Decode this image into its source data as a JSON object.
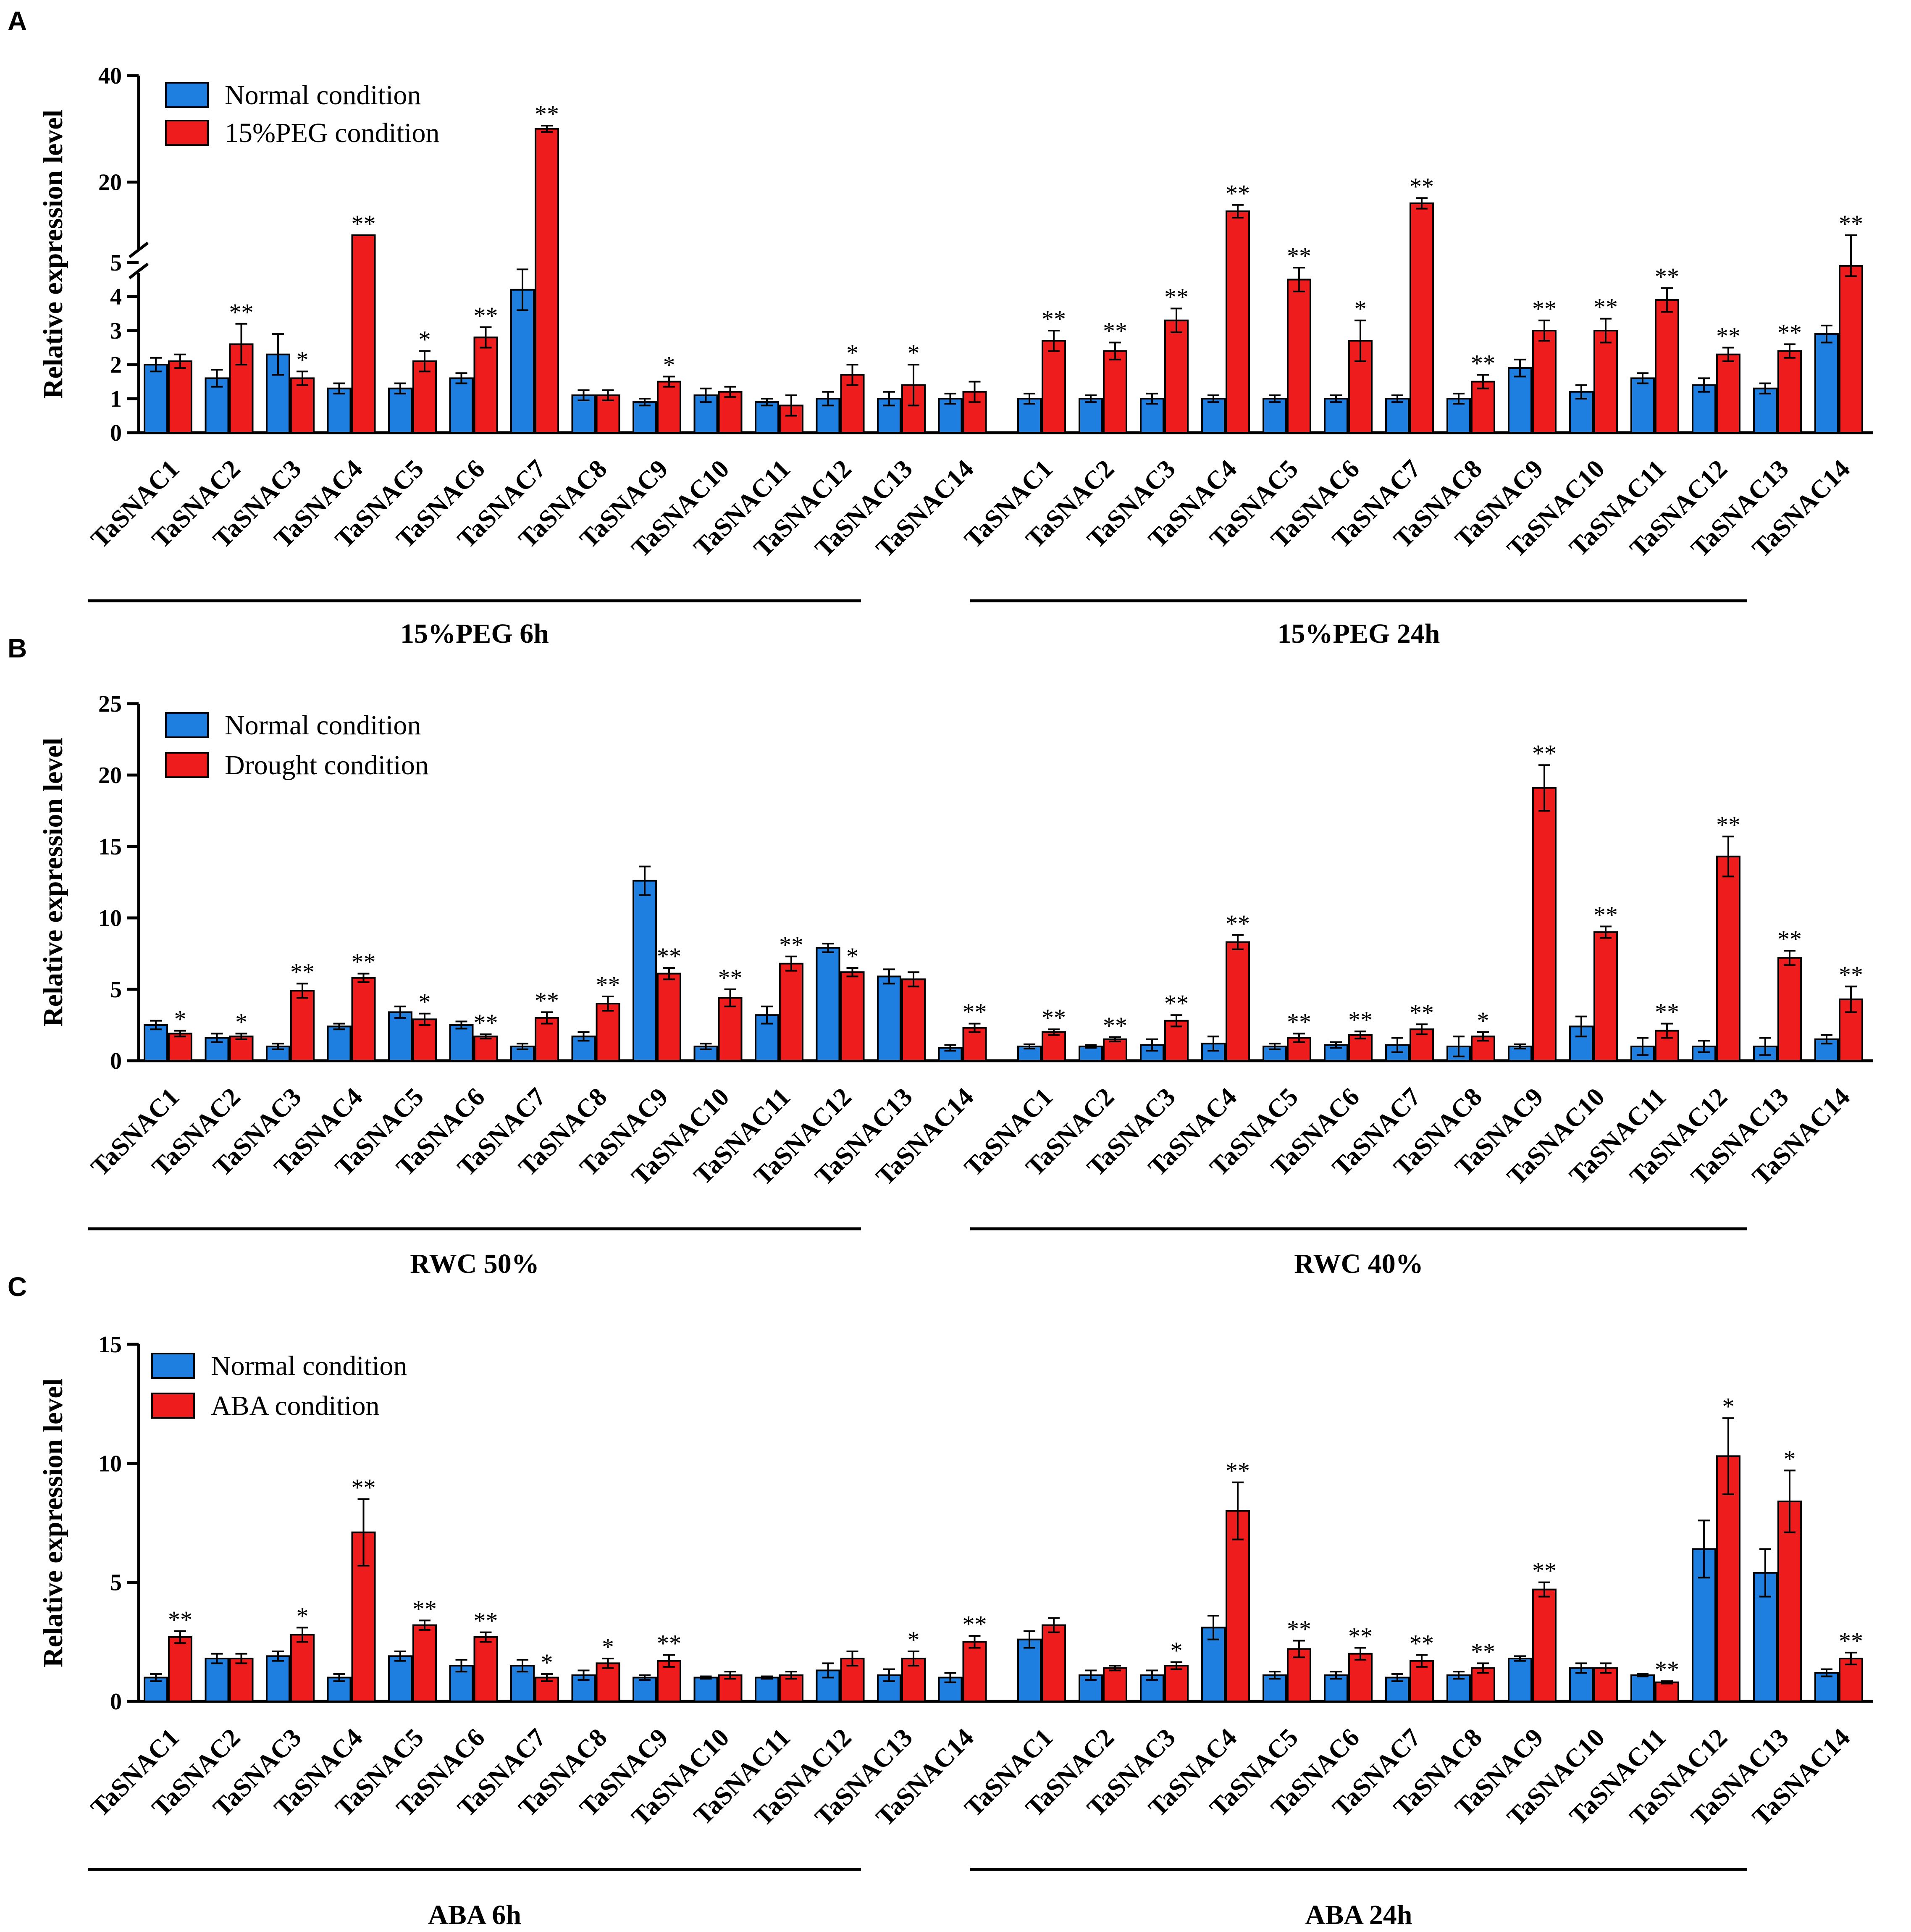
{
  "chart_data": [
    {
      "panel": "A",
      "type": "bar",
      "ylabel": "Relative expression level",
      "axis_break": true,
      "y_ticks": [
        0,
        1,
        2,
        3,
        4,
        5,
        20,
        40
      ],
      "legend": [
        {
          "name": "Normal condition",
          "color": "#1f7fe0"
        },
        {
          "name": "15%PEG condition",
          "color": "#ee1c1c"
        }
      ],
      "groups": [
        {
          "label": "15%PEG 6h",
          "categories": [
            "TaSNAC1",
            "TaSNAC2",
            "TaSNAC3",
            "TaSNAC4",
            "TaSNAC5",
            "TaSNAC6",
            "TaSNAC7",
            "TaSNAC8",
            "TaSNAC9",
            "TaSNAC10",
            "TaSNAC11",
            "TaSNAC12",
            "TaSNAC13",
            "TaSNAC14"
          ],
          "series": [
            {
              "name": "Normal condition",
              "values": [
                2.0,
                1.6,
                2.3,
                1.3,
                1.3,
                1.6,
                4.2,
                1.1,
                0.9,
                1.1,
                0.9,
                1.0,
                1.0,
                1.0
              ],
              "errors": [
                0.2,
                0.25,
                0.6,
                0.15,
                0.15,
                0.15,
                0.6,
                0.15,
                0.1,
                0.2,
                0.1,
                0.2,
                0.2,
                0.15
              ]
            },
            {
              "name": "15%PEG condition",
              "values": [
                2.1,
                2.6,
                1.6,
                8.0,
                2.1,
                2.8,
                30.0,
                1.1,
                1.5,
                1.2,
                0.8,
                1.7,
                1.4,
                1.2
              ],
              "errors": [
                0.2,
                0.6,
                0.2,
                0.4,
                0.3,
                0.3,
                0.6,
                0.15,
                0.15,
                0.15,
                0.3,
                0.3,
                0.6,
                0.3
              ]
            }
          ],
          "significance": [
            "",
            "**",
            "*",
            "**",
            "*",
            "**",
            "**",
            "",
            "*",
            "",
            "",
            "*",
            "*",
            ""
          ]
        },
        {
          "label": "15%PEG 24h",
          "categories": [
            "TaSNAC1",
            "TaSNAC2",
            "TaSNAC3",
            "TaSNAC4",
            "TaSNAC5",
            "TaSNAC6",
            "TaSNAC7",
            "TaSNAC8",
            "TaSNAC9",
            "TaSNAC10",
            "TaSNAC11",
            "TaSNAC12",
            "TaSNAC13",
            "TaSNAC14"
          ],
          "series": [
            {
              "name": "Normal condition",
              "values": [
                1.0,
                1.0,
                1.0,
                1.0,
                1.0,
                1.0,
                1.0,
                1.0,
                1.9,
                1.2,
                1.6,
                1.4,
                1.3,
                2.9
              ],
              "errors": [
                0.15,
                0.1,
                0.15,
                0.1,
                0.1,
                0.1,
                0.1,
                0.15,
                0.25,
                0.2,
                0.15,
                0.2,
                0.15,
                0.25
              ]
            },
            {
              "name": "15%PEG condition",
              "values": [
                2.7,
                2.4,
                3.3,
                14.5,
                4.5,
                2.7,
                16.0,
                1.5,
                3.0,
                3.0,
                3.9,
                2.3,
                2.4,
                4.9
              ],
              "errors": [
                0.3,
                0.25,
                0.35,
                1.2,
                0.35,
                0.6,
                1.0,
                0.2,
                0.3,
                0.35,
                0.35,
                0.2,
                0.2,
                0.3
              ]
            }
          ],
          "significance": [
            "**",
            "**",
            "**",
            "**",
            "**",
            "*",
            "**",
            "**",
            "**",
            "**",
            "**",
            "**",
            "**",
            "**"
          ]
        }
      ]
    },
    {
      "panel": "B",
      "type": "bar",
      "ylabel": "Relative expression level",
      "ylim": [
        0,
        25
      ],
      "y_ticks": [
        0,
        5,
        10,
        15,
        20,
        25
      ],
      "legend": [
        {
          "name": "Normal condition",
          "color": "#1f7fe0"
        },
        {
          "name": "Drought condition",
          "color": "#ee1c1c"
        }
      ],
      "groups": [
        {
          "label": "RWC 50%",
          "categories": [
            "TaSNAC1",
            "TaSNAC2",
            "TaSNAC3",
            "TaSNAC4",
            "TaSNAC5",
            "TaSNAC6",
            "TaSNAC7",
            "TaSNAC8",
            "TaSNAC9",
            "TaSNAC10",
            "TaSNAC11",
            "TaSNAC12",
            "TaSNAC13",
            "TaSNAC14"
          ],
          "series": [
            {
              "name": "Normal condition",
              "values": [
                2.5,
                1.6,
                1.0,
                2.4,
                3.4,
                2.5,
                1.0,
                1.7,
                12.6,
                1.0,
                3.2,
                7.9,
                5.9,
                0.9
              ],
              "errors": [
                0.3,
                0.3,
                0.2,
                0.2,
                0.4,
                0.25,
                0.2,
                0.3,
                1.0,
                0.2,
                0.6,
                0.3,
                0.5,
                0.2
              ]
            },
            {
              "name": "Drought condition",
              "values": [
                1.9,
                1.7,
                4.9,
                5.8,
                2.9,
                1.7,
                3.0,
                4.0,
                6.1,
                4.4,
                6.8,
                6.2,
                5.7,
                2.3
              ],
              "errors": [
                0.2,
                0.2,
                0.5,
                0.3,
                0.4,
                0.15,
                0.4,
                0.5,
                0.4,
                0.6,
                0.5,
                0.3,
                0.5,
                0.3
              ]
            }
          ],
          "significance": [
            "*",
            "*",
            "**",
            "**",
            "*",
            "**",
            "**",
            "**",
            "**",
            "**",
            "**",
            "*",
            "",
            "**"
          ]
        },
        {
          "label": "RWC 40%",
          "categories": [
            "TaSNAC1",
            "TaSNAC2",
            "TaSNAC3",
            "TaSNAC4",
            "TaSNAC5",
            "TaSNAC6",
            "TaSNAC7",
            "TaSNAC8",
            "TaSNAC9",
            "TaSNAC10",
            "TaSNAC11",
            "TaSNAC12",
            "TaSNAC13",
            "TaSNAC14"
          ],
          "series": [
            {
              "name": "Normal condition",
              "values": [
                1.0,
                1.0,
                1.1,
                1.2,
                1.0,
                1.1,
                1.1,
                1.0,
                1.0,
                2.4,
                1.0,
                1.0,
                1.0,
                1.5
              ],
              "errors": [
                0.15,
                0.1,
                0.4,
                0.5,
                0.2,
                0.2,
                0.5,
                0.7,
                0.15,
                0.7,
                0.6,
                0.4,
                0.6,
                0.3
              ]
            },
            {
              "name": "Drought condition",
              "values": [
                2.0,
                1.5,
                2.8,
                8.3,
                1.6,
                1.8,
                2.2,
                1.7,
                19.1,
                9.0,
                2.1,
                14.3,
                7.2,
                4.3
              ],
              "errors": [
                0.2,
                0.15,
                0.4,
                0.5,
                0.3,
                0.25,
                0.35,
                0.3,
                1.6,
                0.4,
                0.5,
                1.4,
                0.5,
                0.9
              ]
            }
          ],
          "significance": [
            "**",
            "**",
            "**",
            "**",
            "**",
            "**",
            "**",
            "*",
            "**",
            "**",
            "**",
            "**",
            "**",
            "**"
          ]
        }
      ]
    },
    {
      "panel": "C",
      "type": "bar",
      "ylabel": "Relative expression level",
      "ylim": [
        0,
        15
      ],
      "y_ticks": [
        0,
        5,
        10,
        15
      ],
      "legend": [
        {
          "name": "Normal condition",
          "color": "#1f7fe0"
        },
        {
          "name": "ABA condition",
          "color": "#ee1c1c"
        }
      ],
      "groups": [
        {
          "label": "ABA 6h",
          "categories": [
            "TaSNAC1",
            "TaSNAC2",
            "TaSNAC3",
            "TaSNAC4",
            "TaSNAC5",
            "TaSNAC6",
            "TaSNAC7",
            "TaSNAC8",
            "TaSNAC9",
            "TaSNAC10",
            "TaSNAC11",
            "TaSNAC12",
            "TaSNAC13",
            "TaSNAC14"
          ],
          "series": [
            {
              "name": "Normal condition",
              "values": [
                1.0,
                1.8,
                1.9,
                1.0,
                1.9,
                1.5,
                1.5,
                1.1,
                1.0,
                1.0,
                1.0,
                1.3,
                1.1,
                1.0
              ],
              "errors": [
                0.15,
                0.2,
                0.2,
                0.15,
                0.2,
                0.25,
                0.25,
                0.2,
                0.1,
                0.05,
                0.05,
                0.3,
                0.25,
                0.2
              ]
            },
            {
              "name": "ABA condition",
              "values": [
                2.7,
                1.8,
                2.8,
                7.1,
                3.2,
                2.7,
                1.0,
                1.6,
                1.7,
                1.1,
                1.1,
                1.8,
                1.8,
                2.5
              ],
              "errors": [
                0.25,
                0.2,
                0.3,
                1.4,
                0.2,
                0.2,
                0.15,
                0.2,
                0.25,
                0.15,
                0.15,
                0.3,
                0.3,
                0.25
              ]
            }
          ],
          "significance": [
            "**",
            "",
            "*",
            "**",
            "**",
            "**",
            "*",
            "*",
            "**",
            "",
            "",
            "",
            "*",
            "**"
          ]
        },
        {
          "label": "ABA 24h",
          "categories": [
            "TaSNAC1",
            "TaSNAC2",
            "TaSNAC3",
            "TaSNAC4",
            "TaSNAC5",
            "TaSNAC6",
            "TaSNAC7",
            "TaSNAC8",
            "TaSNAC9",
            "TaSNAC10",
            "TaSNAC11",
            "TaSNAC12",
            "TaSNAC13",
            "TaSNAC14"
          ],
          "series": [
            {
              "name": "Normal condition",
              "values": [
                2.6,
                1.1,
                1.1,
                3.1,
                1.1,
                1.1,
                1.0,
                1.1,
                1.8,
                1.4,
                1.1,
                6.4,
                5.4,
                1.2
              ],
              "errors": [
                0.35,
                0.2,
                0.2,
                0.5,
                0.15,
                0.15,
                0.15,
                0.15,
                0.1,
                0.2,
                0.05,
                1.2,
                1.0,
                0.15
              ]
            },
            {
              "name": "ABA condition",
              "values": [
                3.2,
                1.4,
                1.5,
                8.0,
                2.2,
                2.0,
                1.7,
                1.4,
                4.7,
                1.4,
                0.8,
                10.3,
                8.4,
                1.8
              ],
              "errors": [
                0.3,
                0.1,
                0.15,
                1.2,
                0.35,
                0.25,
                0.25,
                0.2,
                0.3,
                0.2,
                0.05,
                1.6,
                1.3,
                0.25
              ]
            }
          ],
          "significance": [
            "",
            "",
            "*",
            "**",
            "**",
            "**",
            "**",
            "**",
            "**",
            "",
            "**",
            "*",
            "*",
            "**"
          ]
        }
      ]
    }
  ]
}
